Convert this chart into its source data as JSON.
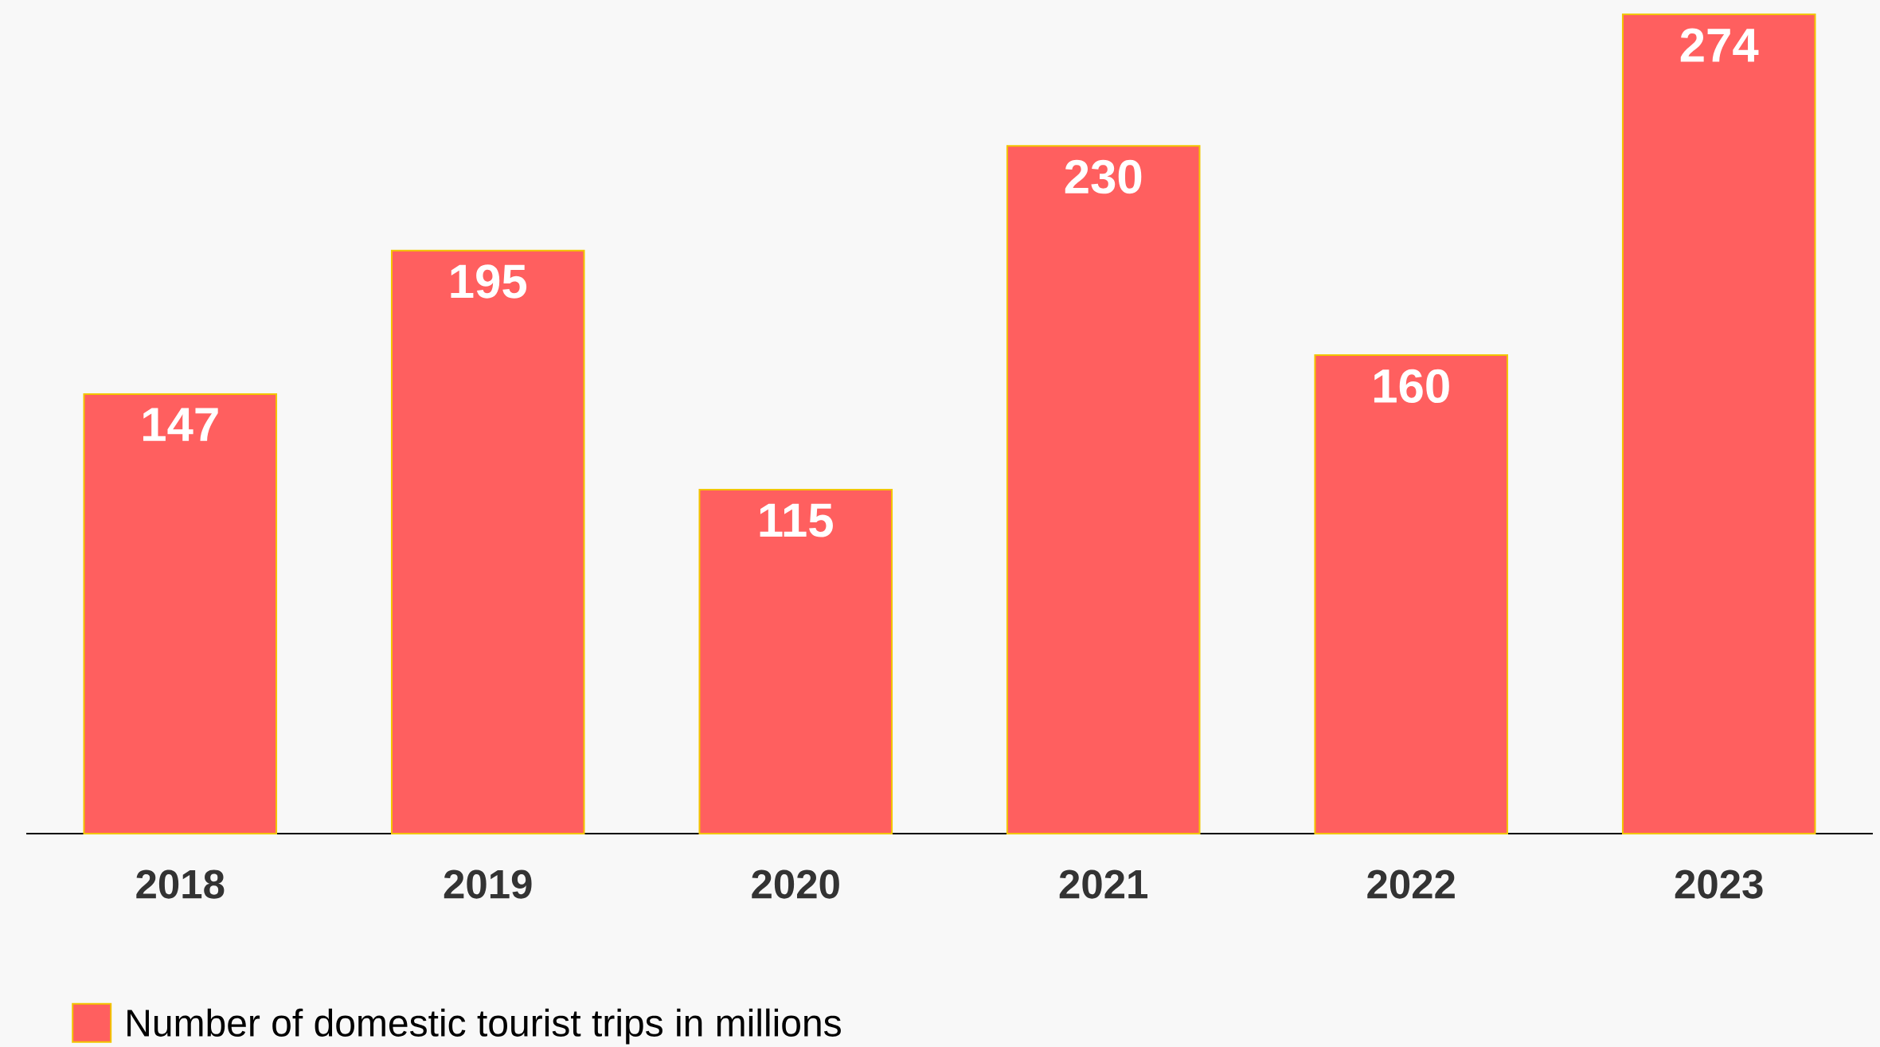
{
  "chart_data": {
    "type": "bar",
    "categories": [
      "2018",
      "2019",
      "2020",
      "2021",
      "2022",
      "2023"
    ],
    "series": [
      {
        "name": "Number of domestic tourist trips in millions",
        "color": "#ff5f5f",
        "values": [
          147,
          195,
          115,
          230,
          160,
          274
        ]
      }
    ],
    "data_labels": true,
    "legend": "bottom left"
  }
}
